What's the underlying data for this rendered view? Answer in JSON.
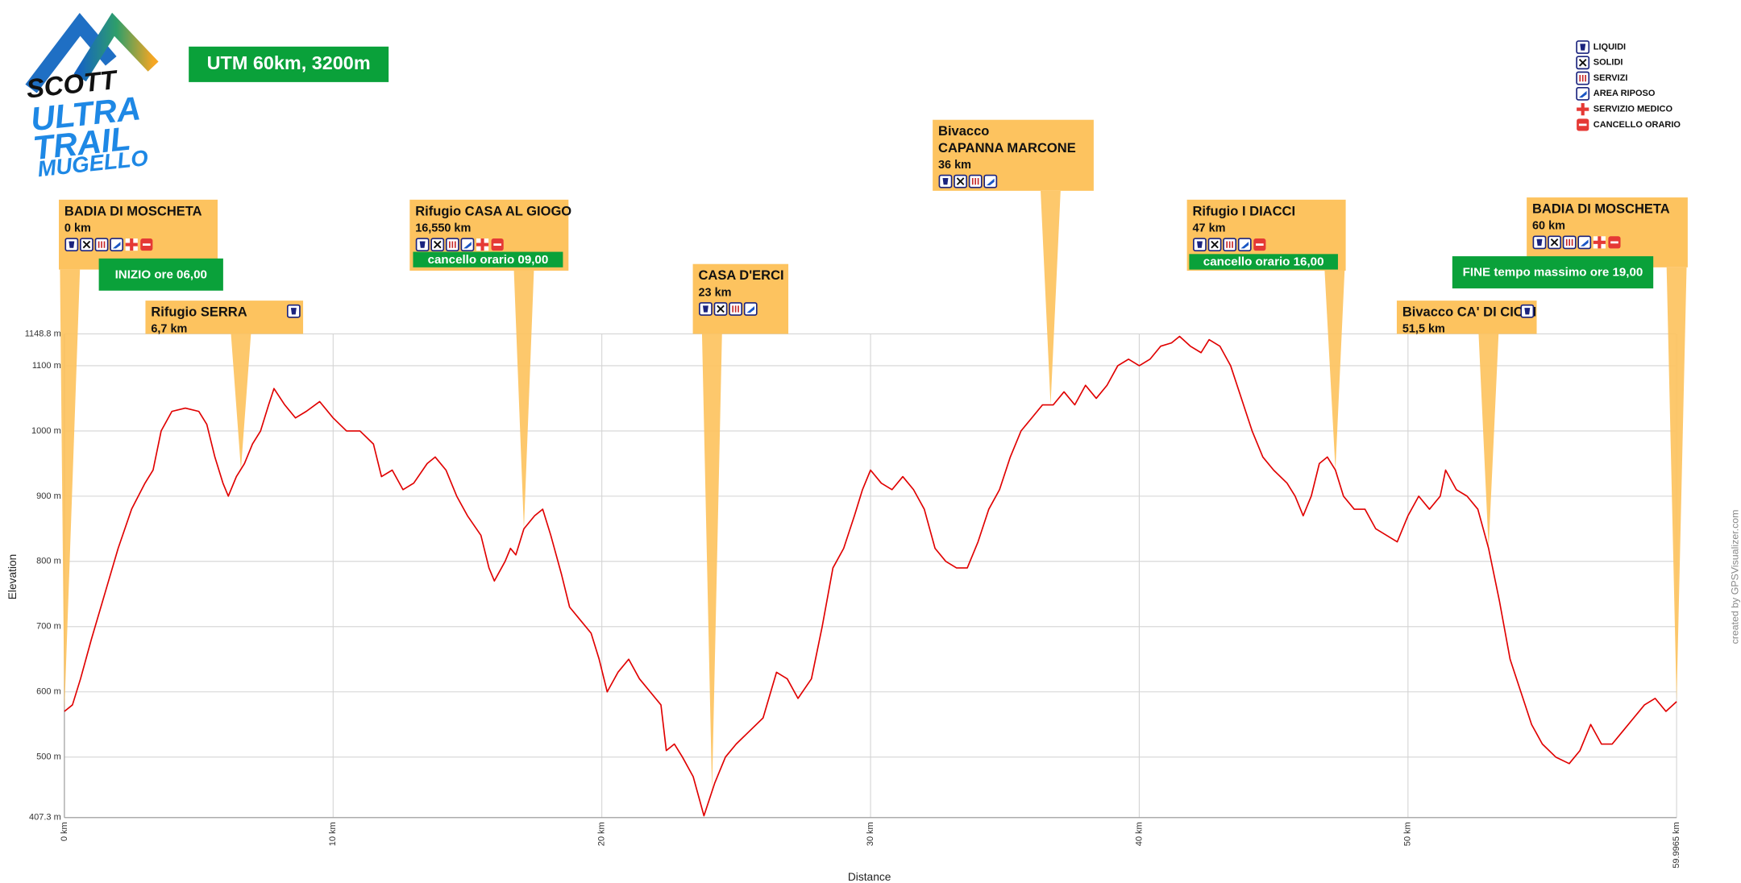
{
  "logo": {
    "brand": "SCOTT",
    "lines": [
      "ULTRA",
      "TRAIL",
      "MUGELLO"
    ]
  },
  "chart_data": {
    "type": "line",
    "title": "UTM 60km, 3200m",
    "x_label": "Distance",
    "y_label": "Elevation",
    "credit": "created by GPSVisualizer.com",
    "color": "#e00000",
    "x": [
      0,
      0.3,
      0.6,
      1,
      1.5,
      2,
      2.5,
      3,
      3.3,
      3.6,
      4,
      4.5,
      5,
      5.3,
      5.6,
      5.9,
      6.1,
      6.4,
      6.7,
      7,
      7.3,
      7.6,
      7.8,
      8.2,
      8.6,
      9,
      9.5,
      10,
      10.5,
      11,
      11.5,
      11.8,
      12.2,
      12.6,
      13,
      13.5,
      13.8,
      14.2,
      14.6,
      15,
      15.5,
      15.8,
      16,
      16.4,
      16.6,
      16.8,
      17.1,
      17.5,
      17.8,
      18.1,
      18.5,
      18.8,
      19.2,
      19.6,
      19.9,
      20.2,
      20.6,
      21,
      21.4,
      21.8,
      22.2,
      22.4,
      22.7,
      23,
      23.4,
      23.8,
      24.2,
      24.6,
      25,
      25.5,
      26,
      26.5,
      26.9,
      27.3,
      27.8,
      28.2,
      28.6,
      29,
      29.4,
      29.7,
      30,
      30.4,
      30.8,
      31.2,
      31.6,
      32,
      32.4,
      32.8,
      33.2,
      33.6,
      34,
      34.4,
      34.8,
      35.2,
      35.6,
      36,
      36.4,
      36.8,
      37.2,
      37.6,
      38,
      38.4,
      38.8,
      39.2,
      39.6,
      40,
      40.4,
      40.8,
      41.2,
      41.5,
      41.9,
      42.3,
      42.6,
      43,
      43.4,
      43.8,
      44.2,
      44.6,
      45,
      45.5,
      45.8,
      46.1,
      46.4,
      46.7,
      47,
      47.3,
      47.6,
      48,
      48.4,
      48.8,
      49.2,
      49.6,
      50,
      50.4,
      50.8,
      51.2,
      51.4,
      51.8,
      52.2,
      52.6,
      53,
      53.4,
      53.8,
      54.2,
      54.6,
      55,
      55.5,
      56,
      56.4,
      56.8,
      57.2,
      57.6,
      58,
      58.4,
      58.8,
      59.2,
      59.6,
      59.9965
    ],
    "values": [
      570,
      580,
      620,
      680,
      750,
      820,
      880,
      920,
      940,
      1000,
      1030,
      1035,
      1030,
      1010,
      960,
      920,
      900,
      930,
      950,
      980,
      1000,
      1040,
      1065,
      1040,
      1020,
      1030,
      1045,
      1020,
      1000,
      1000,
      980,
      930,
      940,
      910,
      920,
      950,
      960,
      940,
      900,
      870,
      840,
      790,
      770,
      800,
      820,
      810,
      850,
      870,
      880,
      840,
      780,
      730,
      710,
      690,
      650,
      600,
      630,
      650,
      620,
      600,
      580,
      510,
      520,
      500,
      470,
      410,
      460,
      500,
      520,
      540,
      560,
      630,
      620,
      590,
      620,
      700,
      790,
      820,
      870,
      910,
      940,
      920,
      910,
      930,
      910,
      880,
      820,
      800,
      790,
      790,
      830,
      880,
      910,
      960,
      1000,
      1020,
      1040,
      1040,
      1060,
      1040,
      1070,
      1050,
      1070,
      1100,
      1110,
      1100,
      1110,
      1130,
      1135,
      1145,
      1130,
      1120,
      1140,
      1130,
      1100,
      1050,
      1000,
      960,
      940,
      920,
      900,
      870,
      900,
      950,
      960,
      940,
      900,
      880,
      880,
      850,
      840,
      830,
      870,
      900,
      880,
      900,
      940,
      910,
      900,
      880,
      820,
      740,
      650,
      600,
      550,
      520,
      500,
      490,
      510,
      550,
      520,
      520,
      540,
      560,
      580,
      590,
      570,
      585
    ],
    "xlim": [
      0,
      59.9965
    ],
    "xticks": [
      {
        "value": 0,
        "label": "0 km"
      },
      {
        "value": 10,
        "label": "10 km"
      },
      {
        "value": 20,
        "label": "20 km"
      },
      {
        "value": 30,
        "label": "30 km"
      },
      {
        "value": 40,
        "label": "40 km"
      },
      {
        "value": 50,
        "label": "50 km"
      },
      {
        "value": 59.9965,
        "label": "59.9965 km"
      }
    ],
    "ylim": [
      407.3,
      1148.8
    ],
    "yticks": [
      {
        "value": 407.3,
        "label": "407.3 m"
      },
      {
        "value": 500,
        "label": "500 m"
      },
      {
        "value": 600,
        "label": "600 m"
      },
      {
        "value": 700,
        "label": "700 m"
      },
      {
        "value": 800,
        "label": "800 m"
      },
      {
        "value": 900,
        "label": "900 m"
      },
      {
        "value": 1000,
        "label": "1000 m"
      },
      {
        "value": 1100,
        "label": "1100 m"
      },
      {
        "value": 1148.8,
        "label": "1148.8 m"
      }
    ],
    "grid": true,
    "legend": [
      "LIQUIDI",
      "SOLIDI",
      "SERVIZI",
      "AREA RIPOSO",
      "SERVIZIO MEDICO",
      "CANCELLO ORARIO"
    ],
    "annotations": [
      {
        "lines": [
          "BADIA DI MOSCHETA",
          "0 km"
        ],
        "x": 0,
        "icons": [
          0,
          1,
          2,
          3,
          4,
          5
        ],
        "note": "INIZIO ore 06,00"
      },
      {
        "lines": [
          "Rifugio SERRA",
          "6,7 km"
        ],
        "x": 6.57,
        "icons": [
          0
        ]
      },
      {
        "lines": [
          "Rifugio CASA AL GIOGO",
          "16,550 km"
        ],
        "x": 17.1,
        "icons": [
          0,
          1,
          2,
          3,
          4,
          5
        ],
        "note": "cancello orario 09,00"
      },
      {
        "lines": [
          "CASA D'ERCI",
          "23 km"
        ],
        "x": 24.1,
        "icons": [
          0,
          1,
          2,
          3
        ]
      },
      {
        "lines": [
          "Bivacco",
          "CAPANNA MARCONE",
          "36 km"
        ],
        "x": 36.7,
        "icons": [
          0,
          1,
          2,
          3
        ]
      },
      {
        "lines": [
          "Rifugio I DIACCI",
          "47 km"
        ],
        "x": 47.3,
        "icons": [
          0,
          1,
          2,
          3,
          5
        ],
        "note": "cancello orario 16,00"
      },
      {
        "lines": [
          "Bivacco CA' DI CICCI",
          "51,5 km"
        ],
        "x": 53.0,
        "icons": [
          0
        ]
      },
      {
        "lines": [
          "BADIA DI MOSCHETA",
          "60 km"
        ],
        "x": 59.9965,
        "icons": [
          0,
          1,
          2,
          3,
          4,
          5
        ],
        "note": "FINE tempo massimo ore 19,00"
      }
    ]
  }
}
